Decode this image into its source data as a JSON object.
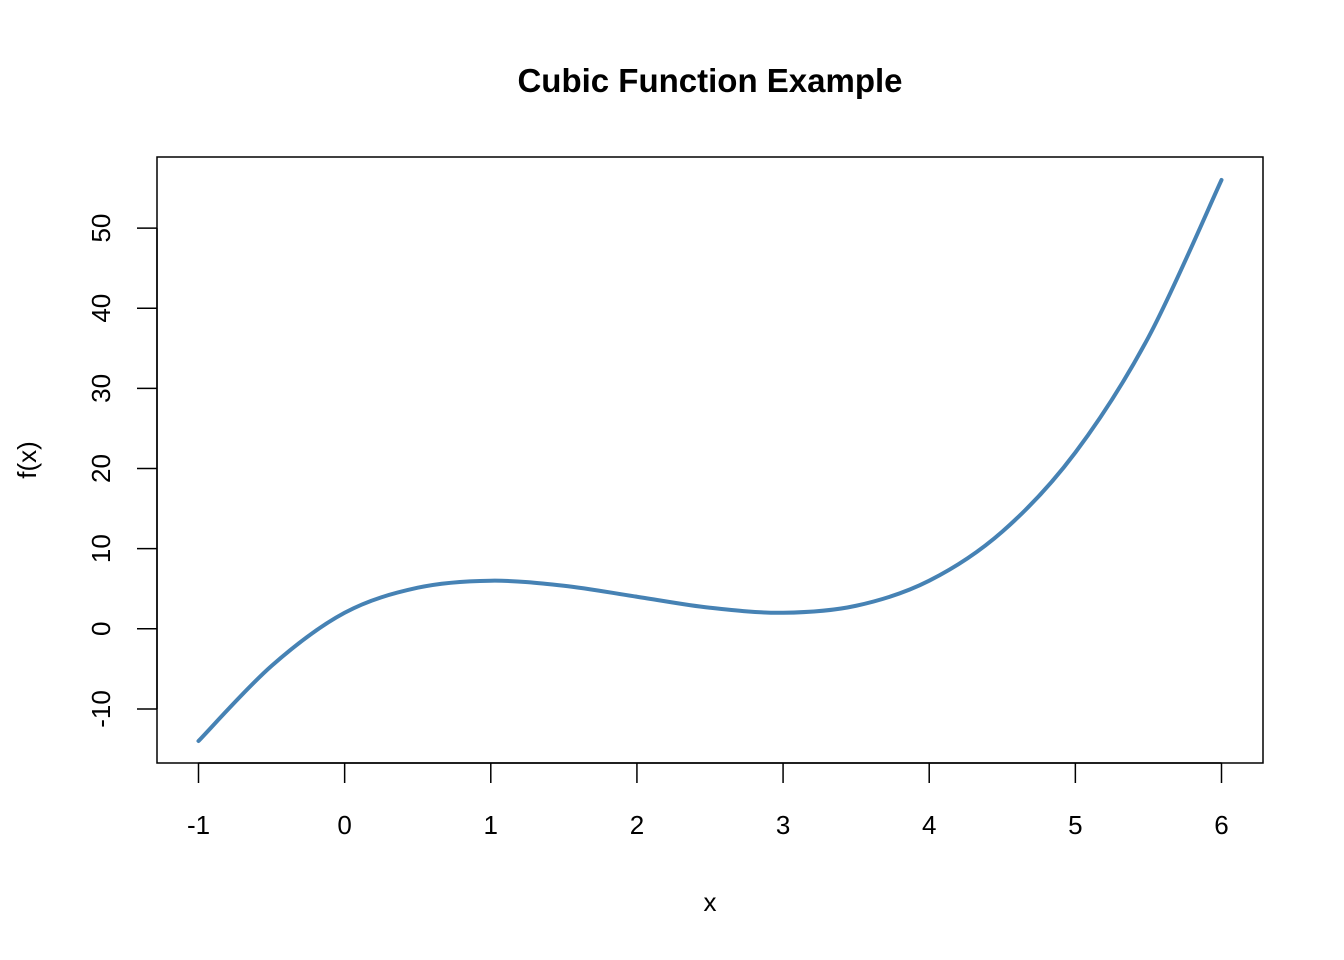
{
  "chart_data": {
    "type": "line",
    "title": "Cubic Function Example",
    "xlabel": "x",
    "ylabel": "f(x)",
    "xlim": [
      -1,
      6
    ],
    "ylim": [
      -14,
      56
    ],
    "x_ticks": [
      -1,
      0,
      1,
      2,
      3,
      4,
      5,
      6
    ],
    "y_ticks": [
      -10,
      0,
      10,
      20,
      30,
      40,
      50
    ],
    "grid": false,
    "line_color": "#4682B4",
    "series": [
      {
        "x": [
          -1,
          -0.5,
          0,
          0.5,
          1,
          1.5,
          2,
          2.5,
          3,
          3.5,
          4,
          4.5,
          5,
          5.5,
          6
        ],
        "values": [
          -14,
          -4.625,
          2,
          5.125,
          6,
          5.375,
          4,
          2.625,
          2,
          2.875,
          6,
          12.125,
          22,
          36.375,
          56
        ]
      }
    ]
  }
}
